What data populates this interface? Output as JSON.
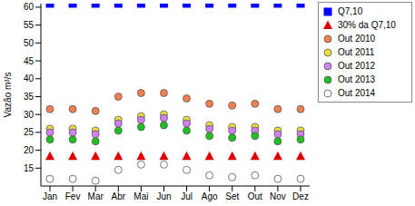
{
  "chart_data": {
    "type": "scatter",
    "y_label": "Vazão m³/s",
    "categories": [
      "Jan",
      "Fev",
      "Mar",
      "Abr",
      "Mai",
      "Jun",
      "Jul",
      "Ago",
      "Set",
      "Out",
      "Nov",
      "Dez"
    ],
    "ylim": [
      10,
      61
    ],
    "yticks": [
      15,
      20,
      25,
      30,
      35,
      40,
      45,
      50,
      55,
      60
    ],
    "grid": false,
    "legend": "right",
    "series": [
      {
        "name": "Q7,10",
        "color": "#0000ff",
        "marker": "square",
        "values": [
          61,
          61,
          61,
          61,
          61,
          61,
          61,
          61,
          61,
          61,
          61,
          61
        ]
      },
      {
        "name": "30% da Q7,10",
        "color": "#e00000",
        "marker": "triangle",
        "values": [
          18.3,
          18.3,
          18.3,
          18.3,
          18.3,
          18.3,
          18.3,
          18.3,
          18.3,
          18.3,
          18.3,
          18.3
        ]
      },
      {
        "name": "Out 2010",
        "color": "#f08050",
        "marker": "circle",
        "values": [
          31.5,
          31.5,
          31,
          35,
          36,
          36,
          34.5,
          33,
          32.5,
          33,
          31.5,
          31.5
        ]
      },
      {
        "name": "Out 2011",
        "color": "#f0e040",
        "marker": "circle",
        "values": [
          26,
          26,
          25.5,
          28.5,
          29.5,
          30,
          28.5,
          27,
          26.5,
          26.5,
          25.5,
          25.5
        ]
      },
      {
        "name": "Out 2012",
        "color": "#d080f0",
        "marker": "circle",
        "values": [
          25,
          25,
          24.5,
          27.5,
          28.5,
          29,
          27.5,
          26,
          25.5,
          25.5,
          24.5,
          24.5
        ]
      },
      {
        "name": "Out 2013",
        "color": "#20c020",
        "marker": "circle",
        "values": [
          23,
          23,
          22.5,
          25.5,
          26.5,
          27,
          25.5,
          24,
          23.5,
          24,
          22.5,
          23
        ]
      },
      {
        "name": "Out 2014",
        "color": "#ffffff",
        "marker": "circle",
        "values": [
          12,
          12,
          11.5,
          14.5,
          16,
          16,
          14.5,
          13,
          12.5,
          13,
          12,
          12
        ]
      }
    ]
  }
}
